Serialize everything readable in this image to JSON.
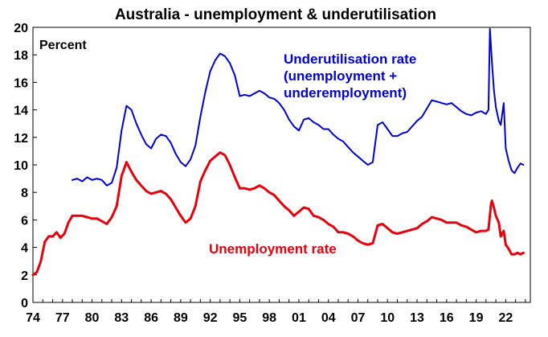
{
  "chart_data": {
    "type": "line",
    "title": "Australia - unemployment & underutilisation",
    "ylabel": "Percent",
    "xlabel": "",
    "ylim": [
      0,
      20
    ],
    "y_ticks": [
      0,
      2,
      4,
      6,
      8,
      10,
      12,
      14,
      16,
      18,
      20
    ],
    "xlim": [
      1974,
      2024.5
    ],
    "x_tick_labels": [
      {
        "year": 1974,
        "label": "74"
      },
      {
        "year": 1977,
        "label": "77"
      },
      {
        "year": 1980,
        "label": "80"
      },
      {
        "year": 1983,
        "label": "83"
      },
      {
        "year": 1986,
        "label": "86"
      },
      {
        "year": 1989,
        "label": "89"
      },
      {
        "year": 1992,
        "label": "92"
      },
      {
        "year": 1995,
        "label": "95"
      },
      {
        "year": 1998,
        "label": "98"
      },
      {
        "year": 2001,
        "label": "01"
      },
      {
        "year": 2004,
        "label": "04"
      },
      {
        "year": 2007,
        "label": "07"
      },
      {
        "year": 2010,
        "label": "10"
      },
      {
        "year": 2013,
        "label": "13"
      },
      {
        "year": 2016,
        "label": "16"
      },
      {
        "year": 2019,
        "label": "19"
      },
      {
        "year": 2022,
        "label": "22"
      }
    ],
    "grid": false,
    "legend": "none",
    "annotations": [
      {
        "lines": [
          "Underutilisation rate",
          "(unemployment +",
          "underemployment)"
        ],
        "color": "#0000d8",
        "series": "underutilisation"
      },
      {
        "lines": [
          "Unemployment rate"
        ],
        "color": "#e8000b",
        "series": "unemployment"
      }
    ],
    "series": [
      {
        "key": "underutilisation",
        "color": "#0000d8",
        "points": [
          [
            1978.0,
            8.9
          ],
          [
            1978.5,
            9.0
          ],
          [
            1979.0,
            8.8
          ],
          [
            1979.5,
            9.1
          ],
          [
            1980.0,
            8.9
          ],
          [
            1980.5,
            9.0
          ],
          [
            1981.0,
            8.9
          ],
          [
            1981.5,
            8.5
          ],
          [
            1982.0,
            8.7
          ],
          [
            1982.5,
            9.8
          ],
          [
            1983.0,
            12.5
          ],
          [
            1983.5,
            14.3
          ],
          [
            1984.0,
            14.0
          ],
          [
            1984.5,
            13.0
          ],
          [
            1985.0,
            12.2
          ],
          [
            1985.5,
            11.5
          ],
          [
            1986.0,
            11.2
          ],
          [
            1986.5,
            11.9
          ],
          [
            1987.0,
            12.2
          ],
          [
            1987.5,
            12.1
          ],
          [
            1988.0,
            11.6
          ],
          [
            1988.5,
            10.8
          ],
          [
            1989.0,
            10.2
          ],
          [
            1989.5,
            9.9
          ],
          [
            1990.0,
            10.4
          ],
          [
            1990.5,
            11.4
          ],
          [
            1991.0,
            13.5
          ],
          [
            1991.5,
            15.3
          ],
          [
            1992.0,
            16.8
          ],
          [
            1992.5,
            17.6
          ],
          [
            1993.0,
            18.1
          ],
          [
            1993.5,
            17.9
          ],
          [
            1994.0,
            17.4
          ],
          [
            1994.5,
            16.5
          ],
          [
            1995.0,
            15.0
          ],
          [
            1995.5,
            15.1
          ],
          [
            1996.0,
            15.0
          ],
          [
            1996.5,
            15.2
          ],
          [
            1997.0,
            15.4
          ],
          [
            1997.5,
            15.2
          ],
          [
            1998.0,
            14.9
          ],
          [
            1998.5,
            14.8
          ],
          [
            1999.0,
            14.5
          ],
          [
            1999.5,
            14.0
          ],
          [
            2000.0,
            13.3
          ],
          [
            2000.5,
            12.8
          ],
          [
            2001.0,
            12.5
          ],
          [
            2001.5,
            13.3
          ],
          [
            2002.0,
            13.4
          ],
          [
            2002.5,
            13.1
          ],
          [
            2003.0,
            12.9
          ],
          [
            2003.5,
            12.6
          ],
          [
            2004.0,
            12.6
          ],
          [
            2004.5,
            12.2
          ],
          [
            2005.0,
            11.9
          ],
          [
            2005.5,
            11.7
          ],
          [
            2006.0,
            11.3
          ],
          [
            2006.5,
            10.9
          ],
          [
            2007.0,
            10.6
          ],
          [
            2007.5,
            10.3
          ],
          [
            2008.0,
            10.0
          ],
          [
            2008.5,
            10.2
          ],
          [
            2009.0,
            12.9
          ],
          [
            2009.5,
            13.1
          ],
          [
            2010.0,
            12.6
          ],
          [
            2010.5,
            12.1
          ],
          [
            2011.0,
            12.1
          ],
          [
            2011.5,
            12.3
          ],
          [
            2012.0,
            12.4
          ],
          [
            2012.5,
            12.8
          ],
          [
            2013.0,
            13.2
          ],
          [
            2013.5,
            13.5
          ],
          [
            2014.0,
            14.1
          ],
          [
            2014.5,
            14.7
          ],
          [
            2015.0,
            14.6
          ],
          [
            2015.5,
            14.5
          ],
          [
            2016.0,
            14.4
          ],
          [
            2016.5,
            14.5
          ],
          [
            2017.0,
            14.2
          ],
          [
            2017.5,
            13.9
          ],
          [
            2018.0,
            13.7
          ],
          [
            2018.5,
            13.6
          ],
          [
            2019.0,
            13.8
          ],
          [
            2019.5,
            13.9
          ],
          [
            2020.0,
            13.7
          ],
          [
            2020.25,
            14.0
          ],
          [
            2020.4,
            19.9
          ],
          [
            2020.6,
            17.5
          ],
          [
            2020.8,
            15.5
          ],
          [
            2021.0,
            14.2
          ],
          [
            2021.3,
            13.2
          ],
          [
            2021.5,
            12.9
          ],
          [
            2021.8,
            14.5
          ],
          [
            2022.0,
            11.2
          ],
          [
            2022.3,
            10.3
          ],
          [
            2022.6,
            9.6
          ],
          [
            2022.9,
            9.4
          ],
          [
            2023.2,
            9.8
          ],
          [
            2023.5,
            10.1
          ],
          [
            2023.8,
            10.0
          ]
        ]
      },
      {
        "key": "unemployment",
        "color": "#e8000b",
        "points": [
          [
            1974.0,
            2.0
          ],
          [
            1974.4,
            2.2
          ],
          [
            1974.8,
            3.0
          ],
          [
            1975.2,
            4.4
          ],
          [
            1975.6,
            4.8
          ],
          [
            1976.0,
            4.8
          ],
          [
            1976.4,
            5.1
          ],
          [
            1976.8,
            4.7
          ],
          [
            1977.2,
            5.0
          ],
          [
            1977.6,
            5.8
          ],
          [
            1978.0,
            6.3
          ],
          [
            1978.5,
            6.3
          ],
          [
            1979.0,
            6.3
          ],
          [
            1979.5,
            6.2
          ],
          [
            1980.0,
            6.1
          ],
          [
            1980.5,
            6.1
          ],
          [
            1981.0,
            5.9
          ],
          [
            1981.5,
            5.7
          ],
          [
            1982.0,
            6.2
          ],
          [
            1982.5,
            7.0
          ],
          [
            1983.0,
            9.2
          ],
          [
            1983.5,
            10.2
          ],
          [
            1984.0,
            9.5
          ],
          [
            1984.5,
            8.9
          ],
          [
            1985.0,
            8.5
          ],
          [
            1985.5,
            8.1
          ],
          [
            1986.0,
            7.9
          ],
          [
            1986.5,
            8.0
          ],
          [
            1987.0,
            8.1
          ],
          [
            1987.5,
            7.9
          ],
          [
            1988.0,
            7.5
          ],
          [
            1988.5,
            6.9
          ],
          [
            1989.0,
            6.3
          ],
          [
            1989.5,
            5.8
          ],
          [
            1990.0,
            6.1
          ],
          [
            1990.5,
            7.0
          ],
          [
            1991.0,
            8.8
          ],
          [
            1991.5,
            9.6
          ],
          [
            1992.0,
            10.3
          ],
          [
            1992.5,
            10.6
          ],
          [
            1993.0,
            10.9
          ],
          [
            1993.5,
            10.7
          ],
          [
            1994.0,
            10.0
          ],
          [
            1994.5,
            9.1
          ],
          [
            1995.0,
            8.3
          ],
          [
            1995.5,
            8.3
          ],
          [
            1996.0,
            8.2
          ],
          [
            1996.5,
            8.3
          ],
          [
            1997.0,
            8.5
          ],
          [
            1997.5,
            8.3
          ],
          [
            1998.0,
            8.0
          ],
          [
            1998.5,
            7.8
          ],
          [
            1999.0,
            7.4
          ],
          [
            1999.5,
            7.0
          ],
          [
            2000.0,
            6.7
          ],
          [
            2000.5,
            6.3
          ],
          [
            2001.0,
            6.6
          ],
          [
            2001.5,
            6.9
          ],
          [
            2002.0,
            6.8
          ],
          [
            2002.5,
            6.3
          ],
          [
            2003.0,
            6.2
          ],
          [
            2003.5,
            6.0
          ],
          [
            2004.0,
            5.7
          ],
          [
            2004.5,
            5.5
          ],
          [
            2005.0,
            5.1
          ],
          [
            2005.5,
            5.1
          ],
          [
            2006.0,
            5.0
          ],
          [
            2006.5,
            4.8
          ],
          [
            2007.0,
            4.5
          ],
          [
            2007.5,
            4.3
          ],
          [
            2008.0,
            4.2
          ],
          [
            2008.5,
            4.3
          ],
          [
            2009.0,
            5.6
          ],
          [
            2009.5,
            5.7
          ],
          [
            2010.0,
            5.4
          ],
          [
            2010.5,
            5.1
          ],
          [
            2011.0,
            5.0
          ],
          [
            2011.5,
            5.1
          ],
          [
            2012.0,
            5.2
          ],
          [
            2012.5,
            5.3
          ],
          [
            2013.0,
            5.4
          ],
          [
            2013.5,
            5.7
          ],
          [
            2014.0,
            5.9
          ],
          [
            2014.5,
            6.2
          ],
          [
            2015.0,
            6.1
          ],
          [
            2015.5,
            6.0
          ],
          [
            2016.0,
            5.8
          ],
          [
            2016.5,
            5.8
          ],
          [
            2017.0,
            5.8
          ],
          [
            2017.5,
            5.6
          ],
          [
            2018.0,
            5.5
          ],
          [
            2018.5,
            5.3
          ],
          [
            2019.0,
            5.1
          ],
          [
            2019.5,
            5.2
          ],
          [
            2020.0,
            5.2
          ],
          [
            2020.25,
            5.3
          ],
          [
            2020.5,
            7.1
          ],
          [
            2020.6,
            7.4
          ],
          [
            2020.8,
            6.9
          ],
          [
            2021.0,
            6.3
          ],
          [
            2021.3,
            5.8
          ],
          [
            2021.5,
            4.8
          ],
          [
            2021.8,
            5.2
          ],
          [
            2022.0,
            4.2
          ],
          [
            2022.3,
            3.9
          ],
          [
            2022.6,
            3.5
          ],
          [
            2022.9,
            3.5
          ],
          [
            2023.2,
            3.6
          ],
          [
            2023.5,
            3.5
          ],
          [
            2023.8,
            3.6
          ]
        ]
      }
    ]
  }
}
